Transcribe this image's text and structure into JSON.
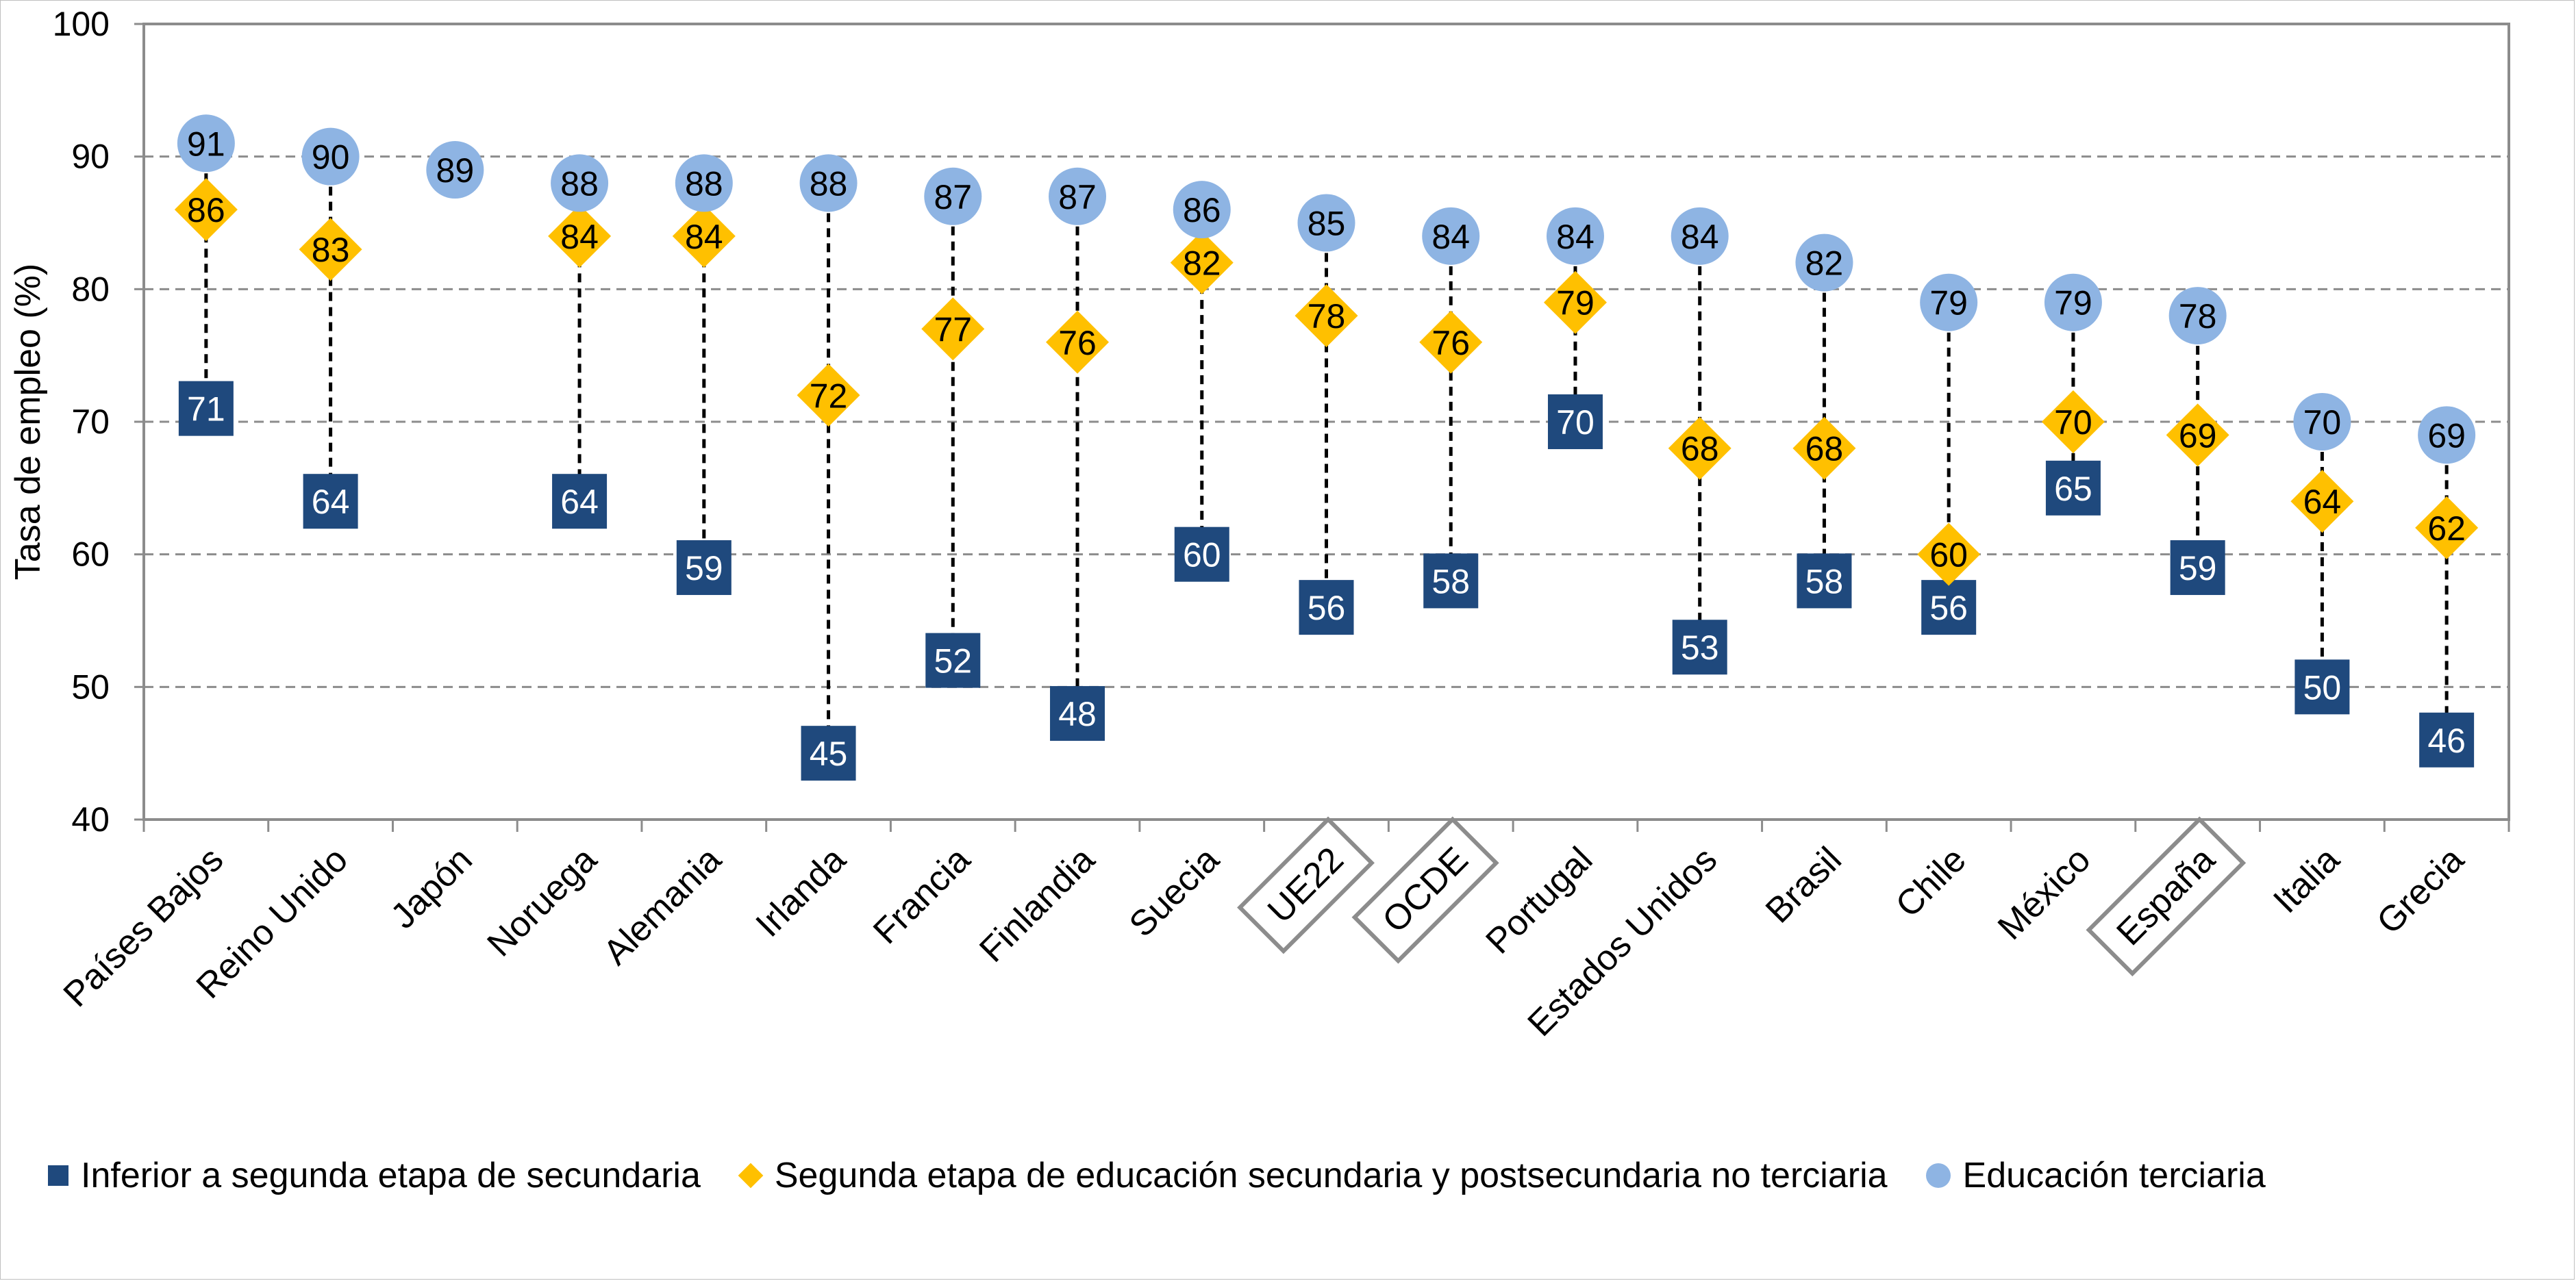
{
  "chart_data": {
    "type": "scatter",
    "title": "",
    "xlabel": "",
    "ylabel": "Tasa de empleo (%)",
    "ylim": [
      40,
      100
    ],
    "yticks": [
      "40",
      "50",
      "60",
      "70",
      "80",
      "90",
      "100"
    ],
    "grid": true,
    "legend_position": "bottom",
    "categories": [
      "Países Bajos",
      "Reino Unido",
      "Japón",
      "Noruega",
      "Alemania",
      "Irlanda",
      "Francia",
      "Finlandia",
      "Suecia",
      "UE22",
      "OCDE",
      "Portugal",
      "Estados Unidos",
      "Brasil",
      "Chile",
      "México",
      "España",
      "Italia",
      "Grecia"
    ],
    "boxed_categories": [
      "UE22",
      "OCDE",
      "España"
    ],
    "series": [
      {
        "name": "Inferior a segunda etapa de secundaria",
        "marker": "square",
        "color": "#1f497d",
        "label_color": "#ffffff",
        "values": [
          71,
          64,
          null,
          64,
          59,
          45,
          52,
          48,
          60,
          56,
          58,
          70,
          53,
          58,
          56,
          65,
          59,
          50,
          46
        ]
      },
      {
        "name": "Segunda etapa de educación secundaria y postsecundaria no terciaria",
        "marker": "diamond",
        "color": "#ffc000",
        "label_color": "#000000",
        "values": [
          86,
          83,
          null,
          84,
          84,
          72,
          77,
          76,
          82,
          78,
          76,
          79,
          68,
          68,
          60,
          70,
          69,
          64,
          62
        ]
      },
      {
        "name": "Educación terciaria",
        "marker": "circle",
        "color": "#8eb4e3",
        "label_color": "#000000",
        "values": [
          91,
          90,
          89,
          88,
          88,
          88,
          87,
          87,
          86,
          85,
          84,
          84,
          84,
          82,
          79,
          79,
          78,
          70,
          69
        ]
      }
    ]
  },
  "legend": {
    "item1": "Inferior a segunda etapa de secundaria",
    "item2": "Segunda etapa de educación secundaria y postsecundaria no terciaria",
    "item3": "Educación terciaria"
  }
}
